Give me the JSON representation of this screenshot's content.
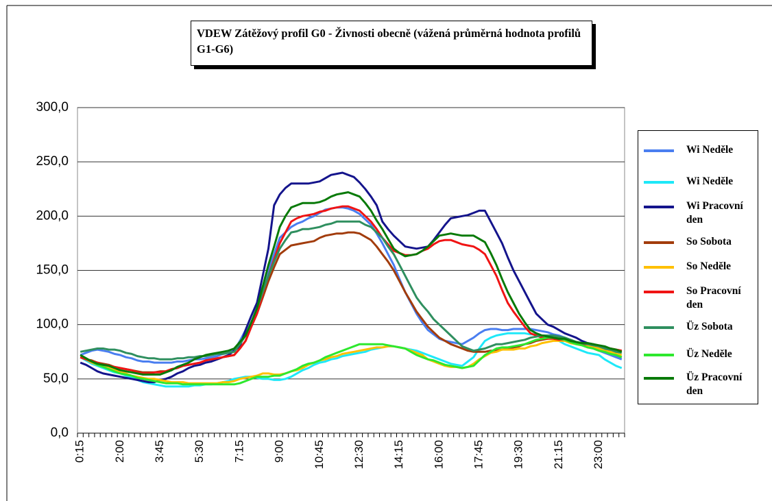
{
  "chart_data": {
    "type": "line",
    "title": "VDEW Zátěžový profil G0 - Živnosti obecně (vážená průměrná hodnota profilů G1-G6)",
    "categories": [
      "0:15",
      null,
      null,
      null,
      null,
      null,
      null,
      "2:00",
      null,
      null,
      null,
      null,
      null,
      null,
      "3:45",
      null,
      null,
      null,
      null,
      null,
      null,
      "5:30",
      null,
      null,
      null,
      null,
      null,
      null,
      "7:15",
      null,
      null,
      null,
      null,
      null,
      null,
      "9:00",
      null,
      null,
      null,
      null,
      null,
      null,
      "10:45",
      null,
      null,
      null,
      null,
      null,
      null,
      "12:30",
      null,
      null,
      null,
      null,
      null,
      null,
      "14:15",
      null,
      null,
      null,
      null,
      null,
      null,
      "16:00",
      null,
      null,
      null,
      null,
      null,
      null,
      "17:45",
      null,
      null,
      null,
      null,
      null,
      null,
      "19:30",
      null,
      null,
      null,
      null,
      null,
      null,
      "21:15",
      null,
      null,
      null,
      null,
      null,
      null,
      "23:00",
      null,
      null,
      null,
      null
    ],
    "ylim": [
      0,
      300
    ],
    "yticks": [
      {
        "value": 0,
        "label": "0,0"
      },
      {
        "value": 50,
        "label": "50,0"
      },
      {
        "value": 100,
        "label": "100,0"
      },
      {
        "value": 150,
        "label": "150,0"
      },
      {
        "value": 200,
        "label": "200,0"
      },
      {
        "value": 250,
        "label": "250,0"
      },
      {
        "value": 300,
        "label": "300,0"
      }
    ],
    "grid": true,
    "legend": "right",
    "series": [
      {
        "name": "Wi Neděle",
        "color": "#4a7ef0",
        "values": [
          72,
          74,
          76,
          77,
          76,
          75,
          73,
          72,
          70,
          69,
          67,
          66,
          66,
          65,
          65,
          65,
          65,
          66,
          66,
          67,
          68,
          68,
          69,
          70,
          71,
          73,
          74,
          76,
          85,
          95,
          108,
          120,
          135,
          150,
          165,
          180,
          185,
          190,
          193,
          195,
          198,
          200,
          203,
          206,
          207,
          208,
          208,
          207,
          205,
          202,
          197,
          192,
          184,
          175,
          165,
          155,
          142,
          130,
          120,
          110,
          102,
          95,
          91,
          87,
          85,
          84,
          83,
          82,
          85,
          88,
          92,
          95,
          96,
          96,
          95,
          95,
          96,
          96,
          96,
          96,
          95,
          94,
          93,
          91,
          90,
          88,
          86,
          84,
          82,
          80,
          78,
          76,
          74,
          72,
          70,
          68
        ]
      },
      {
        "name": "Wi Neděle",
        "color": "#1ee8f8",
        "values": [
          70,
          67,
          64,
          62,
          60,
          58,
          56,
          55,
          53,
          51,
          49,
          47,
          46,
          45,
          44,
          43,
          43,
          43,
          43,
          43,
          44,
          44,
          45,
          45,
          46,
          47,
          48,
          50,
          51,
          52,
          52,
          51,
          50,
          50,
          49,
          49,
          50,
          52,
          55,
          58,
          60,
          63,
          65,
          66,
          68,
          69,
          71,
          72,
          73,
          74,
          75,
          77,
          78,
          79,
          80,
          80,
          79,
          78,
          77,
          76,
          74,
          72,
          70,
          68,
          66,
          64,
          63,
          62,
          66,
          70,
          78,
          85,
          88,
          90,
          91,
          92,
          92,
          92,
          92,
          91,
          91,
          90,
          89,
          88,
          85,
          82,
          80,
          78,
          76,
          74,
          73,
          72,
          68,
          65,
          62,
          60
        ]
      },
      {
        "name": "Wi Pracovní den",
        "color": "#14148c",
        "values": [
          65,
          63,
          60,
          57,
          55,
          54,
          53,
          52,
          51,
          50,
          49,
          48,
          47,
          47,
          49,
          50,
          52,
          55,
          57,
          60,
          62,
          63,
          65,
          66,
          68,
          70,
          72,
          76,
          80,
          95,
          108,
          120,
          145,
          170,
          210,
          220,
          226,
          230,
          230,
          230,
          230,
          231,
          232,
          235,
          238,
          239,
          240,
          238,
          236,
          231,
          225,
          218,
          210,
          195,
          188,
          182,
          177,
          172,
          171,
          170,
          171,
          172,
          178,
          185,
          192,
          198,
          199,
          200,
          201,
          203,
          205,
          205,
          195,
          185,
          175,
          162,
          150,
          140,
          130,
          120,
          110,
          105,
          100,
          98,
          95,
          92,
          90,
          88,
          85,
          83,
          82,
          80,
          78,
          75,
          72,
          70
        ]
      },
      {
        "name": "So Sobota",
        "color": "#a23c0c",
        "values": [
          70,
          68,
          67,
          65,
          64,
          63,
          61,
          60,
          59,
          58,
          57,
          56,
          56,
          56,
          57,
          57,
          59,
          60,
          62,
          63,
          64,
          65,
          67,
          68,
          69,
          70,
          71,
          72,
          78,
          85,
          98,
          110,
          125,
          140,
          153,
          165,
          169,
          173,
          174,
          175,
          176,
          177,
          180,
          182,
          183,
          184,
          184,
          185,
          185,
          184,
          181,
          178,
          172,
          165,
          158,
          150,
          140,
          130,
          121,
          112,
          105,
          98,
          93,
          88,
          85,
          82,
          80,
          78,
          76,
          75,
          75,
          75,
          76,
          76,
          77,
          78,
          79,
          80,
          82,
          83,
          85,
          86,
          87,
          88,
          88,
          87,
          86,
          84,
          83,
          82,
          81,
          80,
          79,
          78,
          77,
          76
        ]
      },
      {
        "name": "So Neděle",
        "color": "#ffc000",
        "values": [
          70,
          68,
          65,
          63,
          61,
          60,
          58,
          56,
          55,
          53,
          52,
          51,
          50,
          50,
          49,
          48,
          47,
          47,
          47,
          46,
          46,
          46,
          46,
          46,
          46,
          47,
          47,
          48,
          50,
          51,
          52,
          53,
          55,
          55,
          54,
          54,
          55,
          57,
          58,
          60,
          63,
          65,
          67,
          68,
          70,
          71,
          73,
          74,
          75,
          76,
          77,
          78,
          79,
          79,
          80,
          80,
          79,
          78,
          76,
          74,
          72,
          68,
          66,
          64,
          62,
          61,
          61,
          60,
          61,
          64,
          68,
          71,
          74,
          75,
          77,
          77,
          77,
          78,
          78,
          80,
          81,
          83,
          84,
          85,
          85,
          85,
          83,
          82,
          81,
          80,
          79,
          78,
          76,
          75,
          73,
          72
        ]
      },
      {
        "name": "So Pracovní den",
        "color": "#f01414",
        "values": [
          70,
          68,
          66,
          65,
          63,
          62,
          61,
          60,
          59,
          58,
          56,
          55,
          55,
          56,
          56,
          57,
          59,
          60,
          62,
          63,
          64,
          65,
          67,
          68,
          69,
          70,
          71,
          72,
          78,
          85,
          98,
          110,
          128,
          145,
          160,
          175,
          185,
          195,
          198,
          200,
          201,
          202,
          204,
          205,
          207,
          208,
          209,
          209,
          207,
          205,
          200,
          195,
          188,
          180,
          174,
          168,
          166,
          164,
          164,
          165,
          168,
          170,
          174,
          177,
          178,
          178,
          176,
          174,
          173,
          172,
          169,
          165,
          155,
          145,
          132,
          120,
          112,
          105,
          98,
          92,
          90,
          88,
          87,
          87,
          86,
          86,
          84,
          83,
          82,
          82,
          81,
          80,
          79,
          78,
          77,
          76
        ]
      },
      {
        "name": "Üz Sobota",
        "color": "#2f8f5f",
        "values": [
          75,
          76,
          77,
          78,
          78,
          77,
          77,
          76,
          74,
          73,
          71,
          70,
          69,
          69,
          68,
          68,
          68,
          69,
          69,
          70,
          70,
          71,
          71,
          72,
          73,
          73,
          74,
          75,
          82,
          90,
          102,
          115,
          130,
          145,
          158,
          170,
          178,
          185,
          186,
          188,
          188,
          189,
          190,
          192,
          193,
          195,
          195,
          195,
          195,
          195,
          192,
          190,
          185,
          180,
          172,
          165,
          155,
          145,
          135,
          125,
          118,
          112,
          105,
          100,
          95,
          90,
          85,
          80,
          78,
          76,
          77,
          78,
          80,
          82,
          82,
          83,
          84,
          85,
          86,
          88,
          89,
          90,
          90,
          90,
          89,
          88,
          86,
          84,
          83,
          82,
          81,
          80,
          78,
          77,
          75,
          74
        ]
      },
      {
        "name": "Üz Neděle",
        "color": "#2ee82e",
        "values": [
          72,
          69,
          66,
          63,
          61,
          59,
          57,
          55,
          54,
          53,
          51,
          50,
          49,
          48,
          47,
          46,
          46,
          46,
          45,
          45,
          45,
          45,
          45,
          45,
          45,
          45,
          45,
          45,
          46,
          48,
          50,
          52,
          52,
          52,
          53,
          53,
          55,
          57,
          59,
          62,
          64,
          65,
          67,
          70,
          72,
          74,
          76,
          78,
          80,
          82,
          82,
          82,
          82,
          82,
          81,
          80,
          79,
          78,
          75,
          72,
          70,
          68,
          67,
          65,
          63,
          62,
          61,
          60,
          61,
          62,
          67,
          72,
          75,
          78,
          79,
          79,
          80,
          81,
          82,
          84,
          86,
          87,
          88,
          88,
          87,
          86,
          84,
          82,
          81,
          79,
          78,
          76,
          75,
          73,
          72,
          70
        ]
      },
      {
        "name": "Üz Pracovní den",
        "color": "#087a08",
        "values": [
          72,
          69,
          66,
          64,
          63,
          62,
          60,
          58,
          57,
          56,
          55,
          54,
          54,
          54,
          54,
          56,
          58,
          61,
          63,
          65,
          68,
          70,
          72,
          73,
          74,
          75,
          76,
          78,
          84,
          90,
          102,
          115,
          135,
          155,
          172,
          190,
          200,
          208,
          210,
          212,
          212,
          212,
          213,
          215,
          218,
          220,
          221,
          222,
          220,
          218,
          212,
          205,
          196,
          188,
          179,
          170,
          166,
          163,
          164,
          165,
          168,
          172,
          177,
          182,
          183,
          184,
          183,
          182,
          182,
          182,
          179,
          176,
          166,
          155,
          142,
          130,
          120,
          110,
          102,
          95,
          92,
          90,
          89,
          88,
          87,
          87,
          85,
          84,
          83,
          83,
          82,
          81,
          80,
          78,
          77,
          75
        ]
      }
    ]
  }
}
